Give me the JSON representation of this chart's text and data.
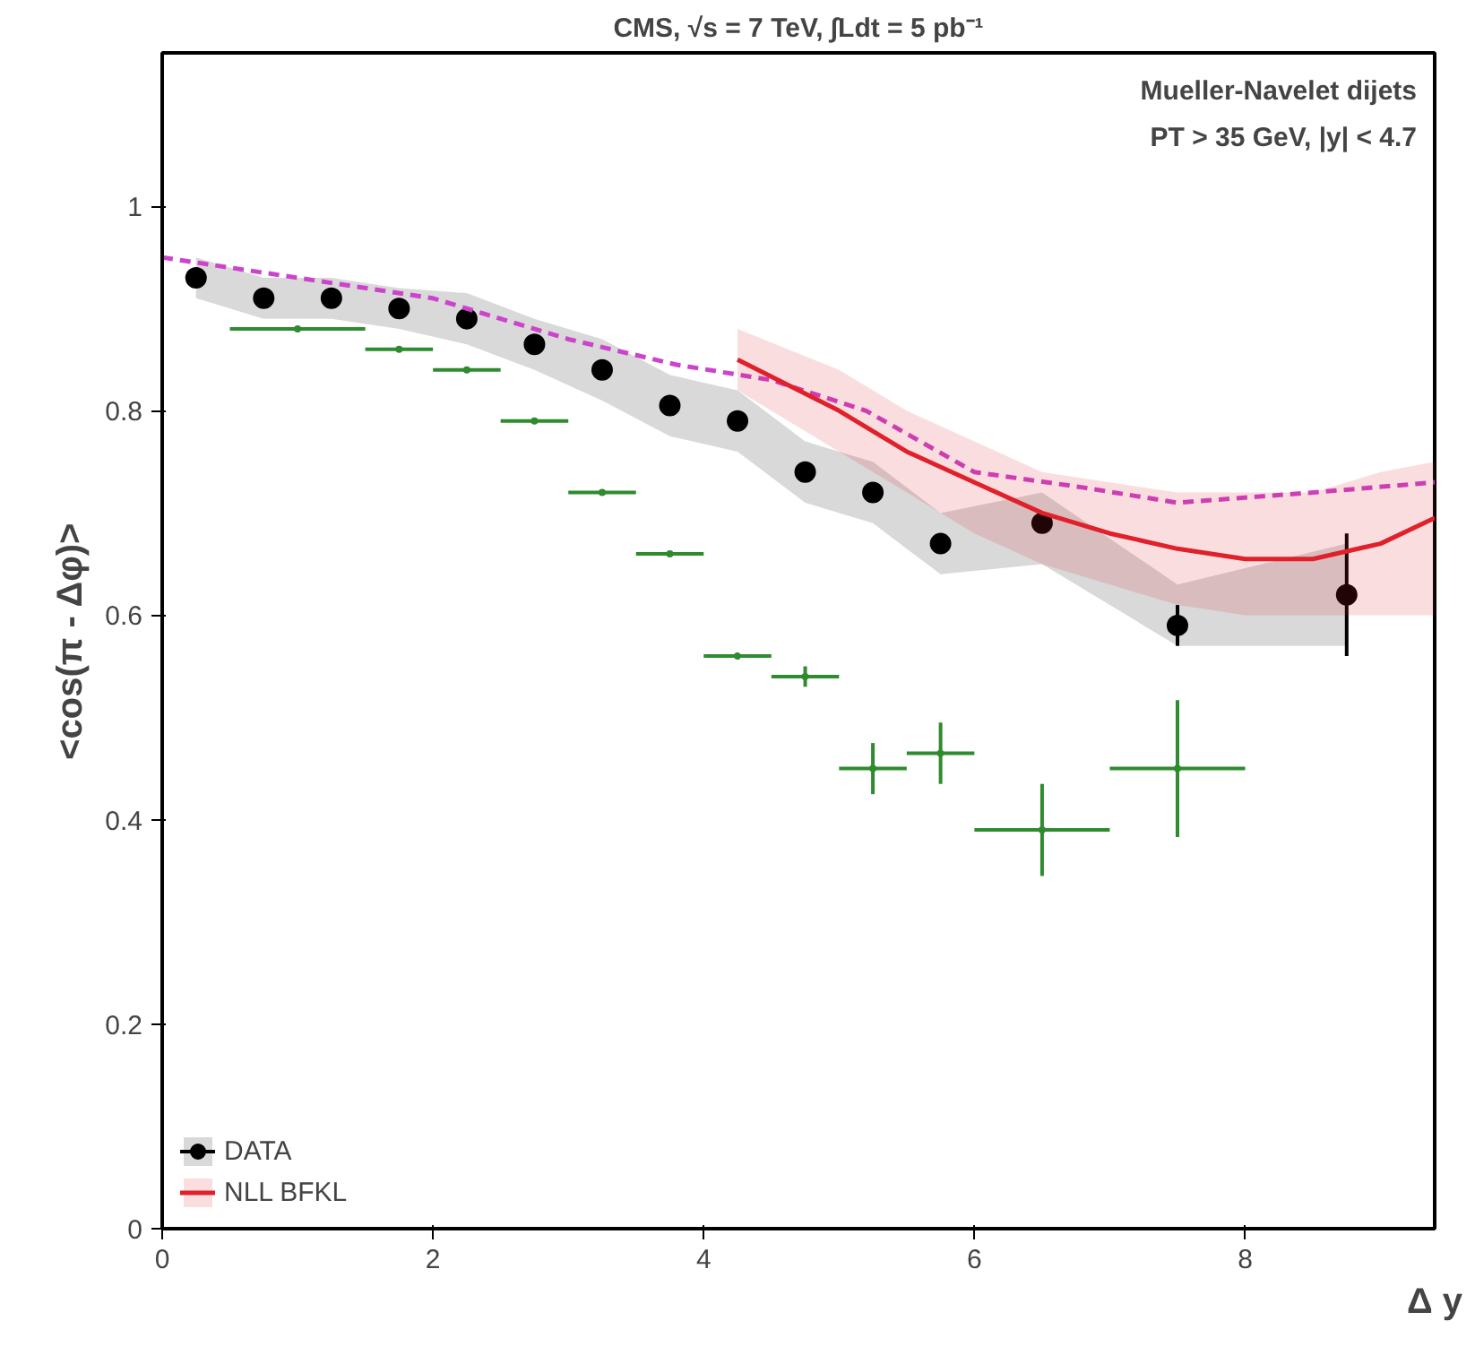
{
  "chart_data": {
    "type": "scatter",
    "title": "CMS, √s = 7 TeV, ∫Ldt = 5 pb⁻¹",
    "xlabel": "Δ y",
    "ylabel": "<cos(π - Δφ)>",
    "annotations": [
      "Mueller-Navelet dijets",
      "PT > 35 GeV, |y| < 4.7"
    ],
    "xlim": [
      0,
      9.4
    ],
    "ylim": [
      0,
      1.15
    ],
    "xticks": [
      0,
      2,
      4,
      6,
      8
    ],
    "yticks": [
      0,
      0.2,
      0.4,
      0.6,
      0.8,
      1
    ],
    "grid": false,
    "legend": "bottom left",
    "series": [
      {
        "name": "DATA",
        "marker": "circle",
        "color": "#000000",
        "x": [
          0.25,
          0.75,
          1.25,
          1.75,
          2.25,
          2.75,
          3.25,
          3.75,
          4.25,
          4.75,
          5.25,
          5.75,
          6.5,
          7.5,
          8.75
        ],
        "values": [
          0.93,
          0.91,
          0.91,
          0.9,
          0.89,
          0.865,
          0.84,
          0.805,
          0.79,
          0.74,
          0.72,
          0.67,
          0.69,
          0.59,
          0.62
        ],
        "errors": [
          null,
          null,
          null,
          null,
          null,
          null,
          null,
          null,
          null,
          null,
          null,
          null,
          null,
          0.02,
          0.06
        ],
        "lower": [
          0.91,
          0.89,
          0.89,
          0.88,
          0.865,
          0.84,
          0.81,
          0.775,
          0.76,
          0.71,
          0.69,
          0.64,
          0.65,
          0.57,
          0.57
        ],
        "upper": [
          0.95,
          0.93,
          0.93,
          0.92,
          0.915,
          0.89,
          0.87,
          0.835,
          0.82,
          0.77,
          0.75,
          0.7,
          0.72,
          0.63,
          0.67
        ]
      },
      {
        "type": "line",
        "line_style": "dashed",
        "color": "#cc44cc",
        "x": [
          0,
          1,
          2,
          3,
          3.8,
          4.5,
          5.2,
          6,
          6.8,
          7.5,
          8.5,
          9.4
        ],
        "values": [
          0.95,
          0.93,
          0.91,
          0.87,
          0.845,
          0.83,
          0.8,
          0.74,
          0.725,
          0.71,
          0.72,
          0.73
        ]
      },
      {
        "name": "NLL BFKL",
        "type": "line",
        "line_style": "solid",
        "color": "#e0202a",
        "x": [
          4.25,
          5,
          5.5,
          6,
          6.5,
          7,
          7.5,
          8,
          8.5,
          9,
          9.4
        ],
        "values": [
          0.85,
          0.8,
          0.76,
          0.73,
          0.7,
          0.68,
          0.665,
          0.655,
          0.655,
          0.67,
          0.695
        ],
        "lower": [
          0.82,
          0.76,
          0.72,
          0.68,
          0.65,
          0.63,
          0.61,
          0.6,
          0.6,
          0.6,
          0.6
        ],
        "upper": [
          0.88,
          0.84,
          0.8,
          0.77,
          0.74,
          0.73,
          0.72,
          0.72,
          0.72,
          0.74,
          0.75
        ]
      },
      {
        "marker": "none",
        "color": "#2e8b2e",
        "x": [
          1.0,
          1.75,
          2.25,
          2.75,
          3.25,
          3.75,
          4.25,
          4.75,
          5.25,
          5.75,
          6.5,
          7.5
        ],
        "values": [
          0.88,
          0.86,
          0.84,
          0.79,
          0.72,
          0.66,
          0.56,
          0.54,
          0.45,
          0.465,
          0.39,
          0.45
        ],
        "xerrors": [
          0.5,
          0.25,
          0.25,
          0.25,
          0.25,
          0.25,
          0.25,
          0.25,
          0.25,
          0.25,
          0.5,
          0.5
        ],
        "errors": [
          null,
          null,
          null,
          null,
          null,
          null,
          null,
          0.01,
          0.025,
          0.03,
          0.045,
          0.067
        ]
      }
    ]
  }
}
